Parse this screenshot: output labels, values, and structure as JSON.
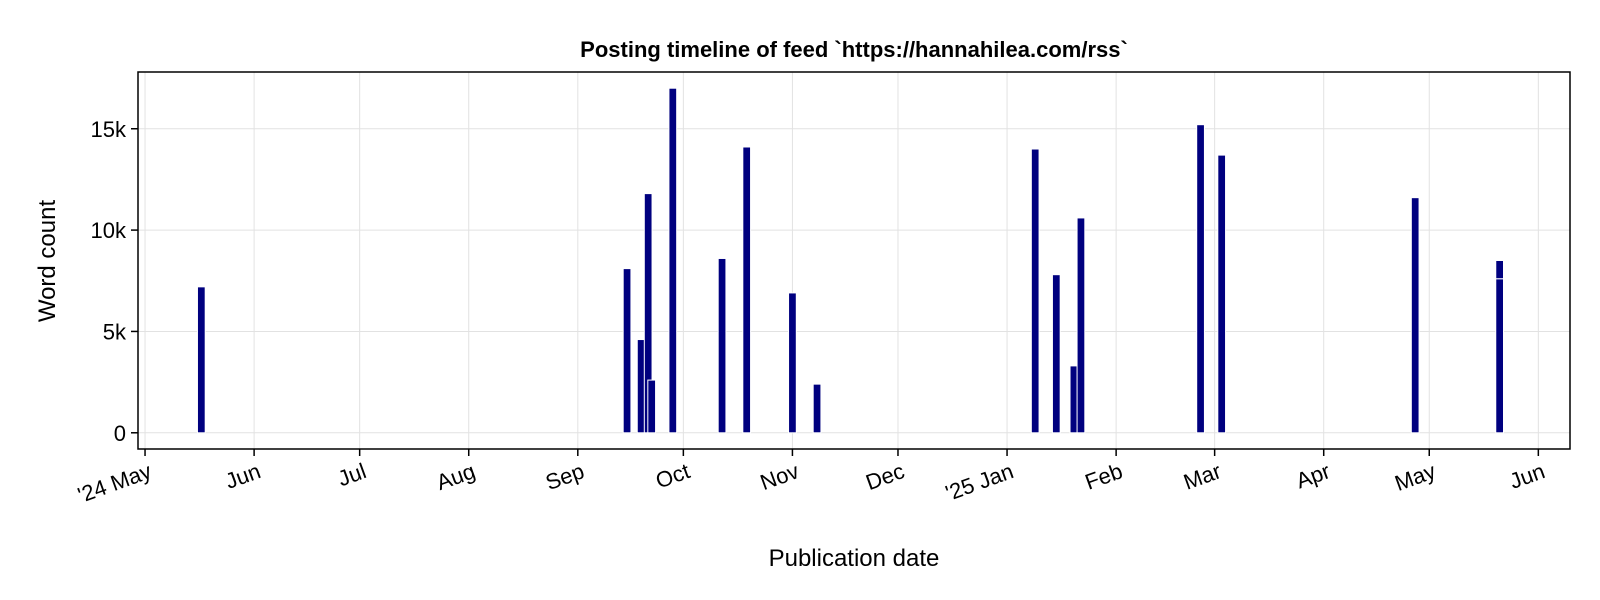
{
  "chart_data": {
    "type": "bar",
    "title": "Posting timeline of feed `https://hannahilea.com/rss`",
    "xlabel": "Publication date",
    "ylabel": "Word count",
    "xlim": [
      "2024-04-29",
      "2025-06-10"
    ],
    "ylim": [
      -800,
      17800
    ],
    "grid": true,
    "bar_color": "#00007f",
    "bar_edge_color": "#ffffff",
    "x_ticks": [
      {
        "date": "2024-05-01",
        "label": "'24 May"
      },
      {
        "date": "2024-06-01",
        "label": "Jun"
      },
      {
        "date": "2024-07-01",
        "label": "Jul"
      },
      {
        "date": "2024-08-01",
        "label": "Aug"
      },
      {
        "date": "2024-09-01",
        "label": "Sep"
      },
      {
        "date": "2024-10-01",
        "label": "Oct"
      },
      {
        "date": "2024-11-01",
        "label": "Nov"
      },
      {
        "date": "2024-12-01",
        "label": "Dec"
      },
      {
        "date": "2025-01-01",
        "label": "'25 Jan"
      },
      {
        "date": "2025-02-01",
        "label": "Feb"
      },
      {
        "date": "2025-03-01",
        "label": "Mar"
      },
      {
        "date": "2025-04-01",
        "label": "Apr"
      },
      {
        "date": "2025-05-01",
        "label": "May"
      },
      {
        "date": "2025-06-01",
        "label": "Jun"
      }
    ],
    "y_ticks": [
      {
        "value": 0,
        "label": "0"
      },
      {
        "value": 5000,
        "label": "5k"
      },
      {
        "value": 10000,
        "label": "10k"
      },
      {
        "value": 15000,
        "label": "15k"
      }
    ],
    "posts": [
      {
        "date": "2024-05-17",
        "words": 7200
      },
      {
        "date": "2024-09-15",
        "words": 8100
      },
      {
        "date": "2024-09-19",
        "words": 4600
      },
      {
        "date": "2024-09-21",
        "words": 11800
      },
      {
        "date": "2024-09-22",
        "words": 2600
      },
      {
        "date": "2024-09-28",
        "words": 17000
      },
      {
        "date": "2024-10-12",
        "words": 8600
      },
      {
        "date": "2024-10-19",
        "words": 14100
      },
      {
        "date": "2024-11-01",
        "words": 6900
      },
      {
        "date": "2024-11-08",
        "words": 2400
      },
      {
        "date": "2025-01-09",
        "words": 14000
      },
      {
        "date": "2025-01-15",
        "words": 7800
      },
      {
        "date": "2025-01-20",
        "words": 3300
      },
      {
        "date": "2025-01-22",
        "words": 10600
      },
      {
        "date": "2025-02-25",
        "words": 15200
      },
      {
        "date": "2025-03-03",
        "words": 13700
      },
      {
        "date": "2025-04-27",
        "words": 11600
      },
      {
        "date": "2025-05-21",
        "words": 7600
      },
      {
        "date": "2025-05-21",
        "words": 900
      }
    ]
  }
}
